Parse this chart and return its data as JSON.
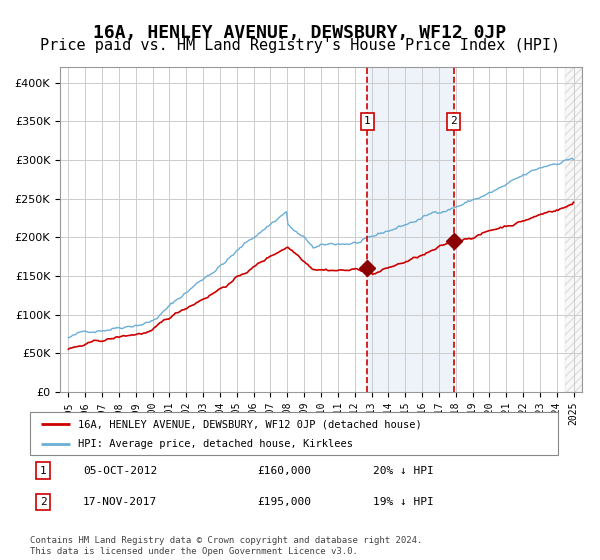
{
  "title": "16A, HENLEY AVENUE, DEWSBURY, WF12 0JP",
  "subtitle": "Price paid vs. HM Land Registry's House Price Index (HPI)",
  "title_fontsize": 13,
  "subtitle_fontsize": 11,
  "background_color": "#ffffff",
  "grid_color": "#cccccc",
  "hpi_line_color": "#6baed6",
  "price_line_color": "#cc0000",
  "marker_color": "#8b0000",
  "marker1_x": 2012.76,
  "marker1_y": 160000,
  "marker2_x": 2017.88,
  "marker2_y": 195000,
  "vline1_x": 2012.76,
  "vline2_x": 2017.88,
  "shade_color": "#dce9f5",
  "shade_alpha": 0.5,
  "ylim": [
    0,
    420000
  ],
  "xlim_start": 1994.5,
  "xlim_end": 2025.5,
  "ylabel_ticks": [
    0,
    50000,
    100000,
    150000,
    200000,
    250000,
    300000,
    350000,
    400000
  ],
  "xticks": [
    1995,
    1996,
    1997,
    1998,
    1999,
    2000,
    2001,
    2002,
    2003,
    2004,
    2005,
    2006,
    2007,
    2008,
    2009,
    2010,
    2011,
    2012,
    2013,
    2014,
    2015,
    2016,
    2017,
    2018,
    2019,
    2020,
    2021,
    2022,
    2023,
    2024,
    2025
  ],
  "legend_label_price": "16A, HENLEY AVENUE, DEWSBURY, WF12 0JP (detached house)",
  "legend_label_hpi": "HPI: Average price, detached house, Kirklees",
  "annotation1_num": "1",
  "annotation2_num": "2",
  "table_row1": [
    "1",
    "05-OCT-2012",
    "£160,000",
    "20% ↓ HPI"
  ],
  "table_row2": [
    "2",
    "17-NOV-2017",
    "£195,000",
    "19% ↓ HPI"
  ],
  "footer": "Contains HM Land Registry data © Crown copyright and database right 2024.\nThis data is licensed under the Open Government Licence v3.0.",
  "hatch_start": 2024.5
}
